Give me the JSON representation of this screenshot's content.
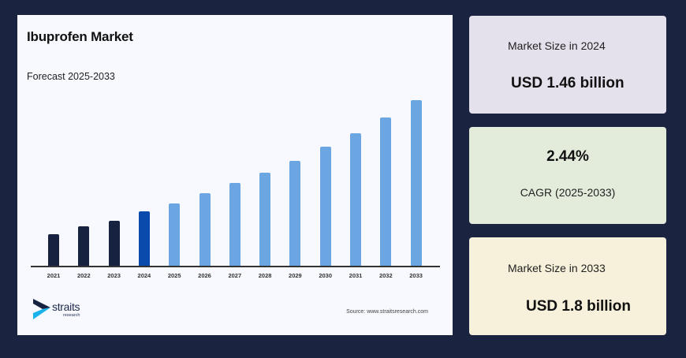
{
  "chart": {
    "title": "Ibuprofen Market",
    "subtitle": "Forecast 2025-2033",
    "source": "Source: www.straitsresearch.com",
    "logo": {
      "word": "straits",
      "sub": "research"
    }
  },
  "colors": {
    "background": "#1a2441",
    "historical": "#16223f",
    "base_year": "#0a4aad",
    "forecast": "#6ba6e3",
    "panel": "#f8f9fe"
  },
  "chart_data": {
    "type": "bar",
    "title": "Ibuprofen Market",
    "subtitle": "Forecast 2025-2033",
    "xlabel": "",
    "ylabel": "",
    "categories": [
      "2021",
      "2022",
      "2023",
      "2024",
      "2025",
      "2026",
      "2027",
      "2028",
      "2029",
      "2030",
      "2031",
      "2032",
      "2033"
    ],
    "values": [
      1.36,
      1.4,
      1.43,
      1.46,
      1.5,
      1.53,
      1.57,
      1.61,
      1.65,
      1.69,
      1.73,
      1.77,
      1.8
    ],
    "bar_pixel_heights": [
      40,
      50,
      57,
      69,
      79,
      92,
      105,
      118,
      133,
      151,
      168,
      188,
      210
    ],
    "bar_roles": [
      "historical",
      "historical",
      "historical",
      "base",
      "forecast",
      "forecast",
      "forecast",
      "forecast",
      "forecast",
      "forecast",
      "forecast",
      "forecast",
      "forecast"
    ],
    "units": "USD billion",
    "grid": false,
    "y_axis_visible": false,
    "legend": null
  },
  "cards": [
    {
      "label": "Market Size in 2024",
      "value": "USD 1.46 billion"
    },
    {
      "value": "2.44%",
      "label": "CAGR (2025-2033)"
    },
    {
      "label": "Market Size in 2033",
      "value": "USD 1.8 billion"
    }
  ]
}
